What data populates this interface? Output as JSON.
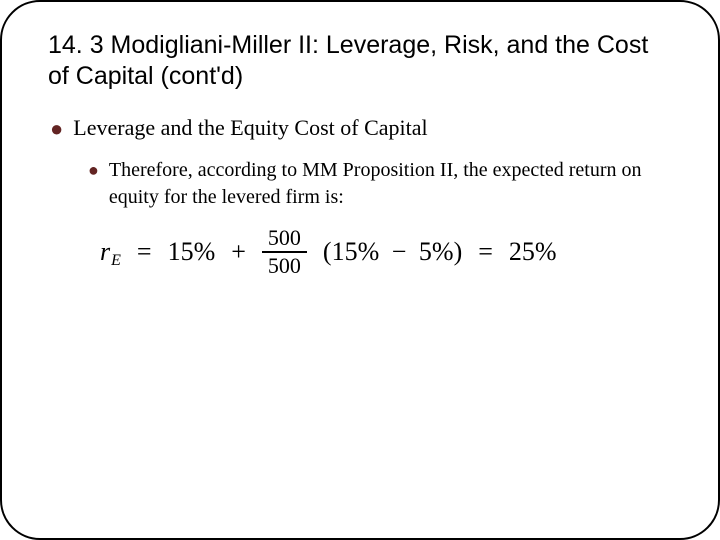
{
  "title": "14. 3 Modigliani-Miller II: Leverage, Risk, and the Cost of Capital (cont'd)",
  "bullets": {
    "l1": "Leverage and the Equity Cost of Capital",
    "l2": "Therefore, according to MM Proposition II, the expected return on equity for the levered firm is:"
  },
  "equation": {
    "lhs_var": "r",
    "lhs_sub": "E",
    "eq_sign_1": "=",
    "term1": "15%",
    "plus": "+",
    "frac_num": "500",
    "frac_den": "500",
    "paren_l": "(15%",
    "minus": "−",
    "paren_r": "5%)",
    "eq_sign_2": "=",
    "result": "25%"
  },
  "colors": {
    "bullet_accent": "#632423",
    "text": "#000000",
    "frame": "#000000",
    "background": "#ffffff"
  }
}
